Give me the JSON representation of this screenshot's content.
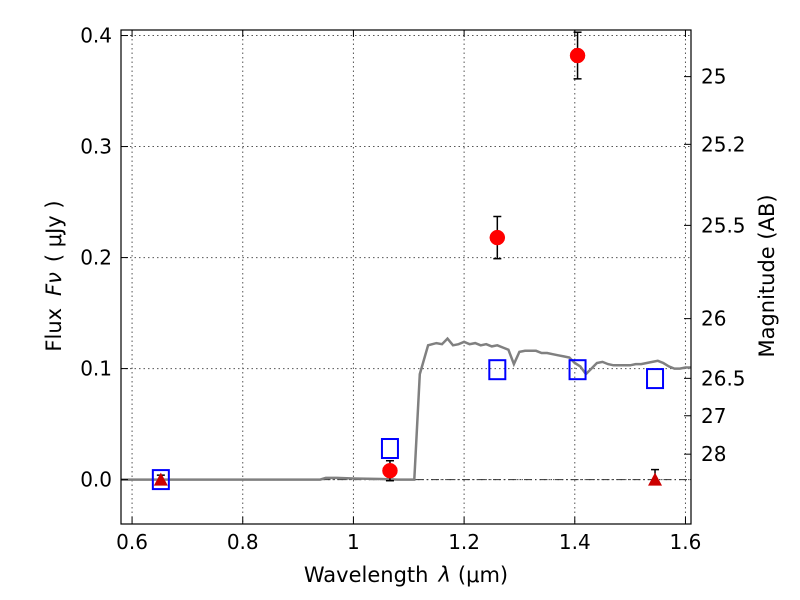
{
  "chart_data": {
    "type": "scatter",
    "xlabel_prefix": "Wavelength",
    "xlabel_symbol": "λ",
    "xlabel_units": "(μm)",
    "ylabel_prefix": "Flux",
    "ylabel_symbol": "Fν",
    "ylabel_units": "( μJy )",
    "ylabel_right": "Magnitude (AB)",
    "xlim": [
      0.58,
      1.61
    ],
    "ylim": [
      -0.04,
      0.405
    ],
    "x_ticks": [
      0.6,
      0.8,
      1.0,
      1.2,
      1.4,
      1.6
    ],
    "x_tick_labels": [
      "0.6",
      "0.8",
      "1",
      "1.2",
      "1.4",
      "1.6"
    ],
    "y_ticks": [
      0.0,
      0.1,
      0.2,
      0.3,
      0.4
    ],
    "y_tick_labels": [
      "0.0",
      "0.1",
      "0.2",
      "0.3",
      "0.4"
    ],
    "right_ticks": [
      {
        "label": "25",
        "flux": 0.363
      },
      {
        "label": "25.2",
        "flux": 0.302
      },
      {
        "label": "25.5",
        "flux": 0.229
      },
      {
        "label": "26",
        "flux": 0.145
      },
      {
        "label": "26.5",
        "flux": 0.0912
      },
      {
        "label": "27",
        "flux": 0.0575
      },
      {
        "label": "28",
        "flux": 0.0229
      }
    ],
    "grid": true,
    "zero_line": true,
    "colors": {
      "measured": "#ff0000",
      "model_band": "#0000ff",
      "limit": "#cc0000",
      "template": "#808080",
      "errorbar": "#000000",
      "grid": "#555555"
    },
    "series": [
      {
        "name": "Template SED",
        "kind": "line",
        "x": [
          0.58,
          0.94,
          0.95,
          0.97,
          1.0,
          1.05,
          1.08,
          1.11,
          1.12,
          1.135,
          1.15,
          1.16,
          1.17,
          1.18,
          1.19,
          1.2,
          1.21,
          1.22,
          1.23,
          1.24,
          1.25,
          1.26,
          1.27,
          1.28,
          1.29,
          1.3,
          1.31,
          1.32,
          1.33,
          1.34,
          1.35,
          1.36,
          1.37,
          1.38,
          1.39,
          1.4,
          1.41,
          1.42,
          1.43,
          1.44,
          1.45,
          1.46,
          1.47,
          1.48,
          1.49,
          1.5,
          1.51,
          1.52,
          1.53,
          1.54,
          1.55,
          1.56,
          1.57,
          1.58,
          1.59,
          1.6,
          1.61
        ],
        "y": [
          0.0,
          0.0,
          0.0015,
          0.0015,
          0.001,
          0.0005,
          0.0,
          0.0,
          0.095,
          0.121,
          0.123,
          0.122,
          0.127,
          0.121,
          0.122,
          0.124,
          0.122,
          0.123,
          0.121,
          0.122,
          0.12,
          0.121,
          0.119,
          0.117,
          0.104,
          0.115,
          0.116,
          0.116,
          0.116,
          0.114,
          0.114,
          0.113,
          0.112,
          0.111,
          0.11,
          0.105,
          0.102,
          0.095,
          0.1,
          0.105,
          0.106,
          0.104,
          0.103,
          0.103,
          0.103,
          0.103,
          0.104,
          0.104,
          0.105,
          0.106,
          0.107,
          0.105,
          0.102,
          0.1,
          0.1,
          0.101,
          0.101
        ]
      },
      {
        "name": "Model band fluxes",
        "kind": "open-square",
        "x": [
          0.652,
          1.066,
          1.26,
          1.405,
          1.545
        ],
        "y": [
          0.0,
          0.028,
          0.099,
          0.099,
          0.091
        ]
      },
      {
        "name": "Measured fluxes",
        "kind": "filled-circle",
        "x": [
          1.066,
          1.26,
          1.405
        ],
        "y": [
          0.008,
          0.218,
          0.382
        ],
        "err": [
          0.009,
          0.019,
          0.021
        ]
      },
      {
        "name": "Upper limits",
        "kind": "filled-triangle",
        "x": [
          0.652,
          1.545
        ],
        "y": [
          0.0,
          0.0
        ],
        "err": [
          0.004,
          0.009
        ]
      }
    ]
  }
}
